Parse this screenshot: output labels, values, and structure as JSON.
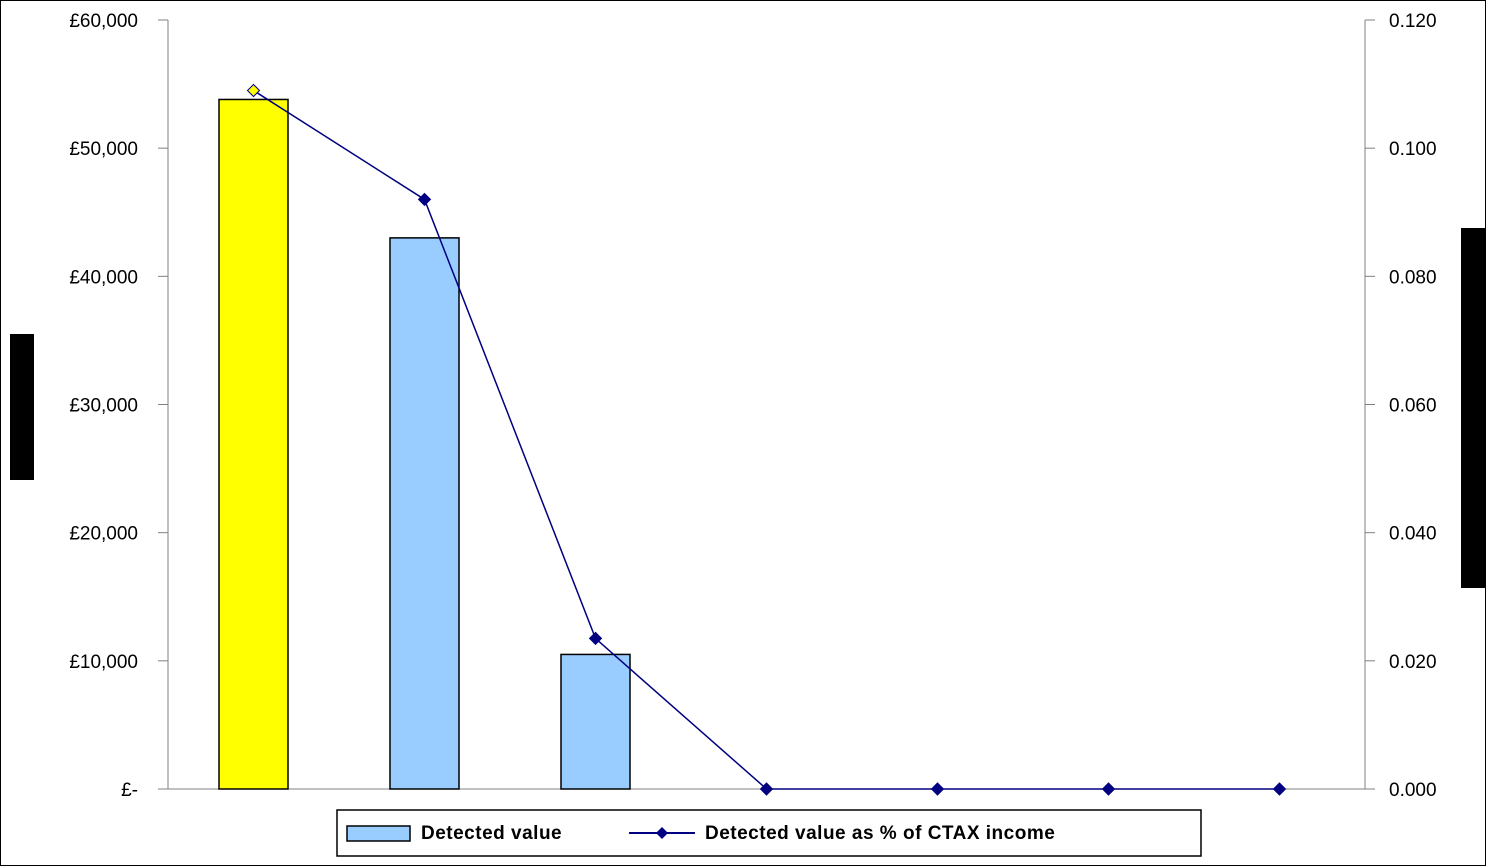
{
  "chart_data": {
    "type": "bar+line",
    "categories": [
      "",
      "",
      "",
      "",
      "",
      "",
      ""
    ],
    "bar_series": {
      "name": "Detected value",
      "values": [
        53800,
        43000,
        10500,
        0,
        0,
        0,
        0
      ],
      "colors": [
        "#ffff00",
        "#99ccff",
        "#99ccff",
        "#99ccff",
        "#99ccff",
        "#99ccff",
        "#99ccff"
      ]
    },
    "line_series": {
      "name": "Detected value as % of CTAX income",
      "values": [
        0.109,
        0.092,
        0.0235,
        0.0,
        0.0,
        0.0,
        0.0
      ],
      "color": "#000080",
      "highlight_first_marker_color": "#ffff00"
    },
    "y_left": {
      "ylim": [
        0,
        60000
      ],
      "ticks": [
        0,
        10000,
        20000,
        30000,
        40000,
        50000,
        60000
      ],
      "tick_labels": [
        "£-",
        "£10,000",
        "£20,000",
        "£30,000",
        "£40,000",
        "£50,000",
        "£60,000"
      ]
    },
    "y_right": {
      "ylim": [
        0,
        0.12
      ],
      "ticks": [
        0,
        0.02,
        0.04,
        0.06,
        0.08,
        0.1,
        0.12
      ],
      "tick_labels": [
        "0.000",
        "0.020",
        "0.040",
        "0.060",
        "0.080",
        "0.100",
        "0.120"
      ]
    },
    "legend": {
      "placement": "bottom",
      "entries": [
        "Detected value",
        "Detected value as % of CTAX income"
      ]
    },
    "grid": false
  }
}
